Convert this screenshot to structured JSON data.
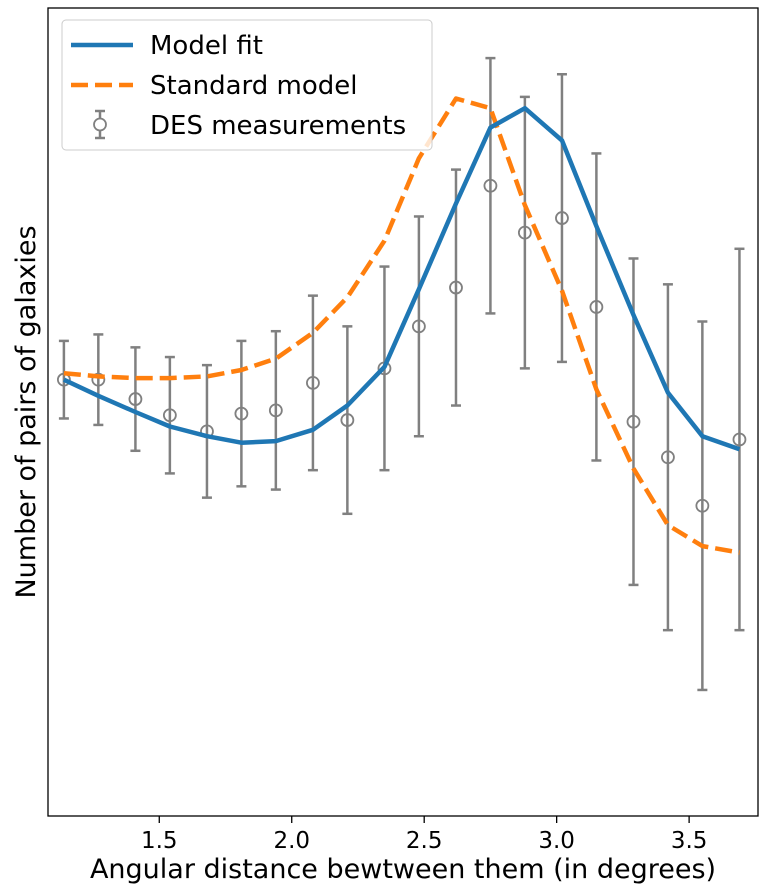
{
  "chart_data": {
    "type": "line",
    "title": "",
    "xlabel": "Angular distance bewtween them (in degrees)",
    "ylabel": "Number of pairs of galaxies",
    "xlim": [
      1.08,
      3.76
    ],
    "ylim": [
      -2.7,
      2.3
    ],
    "xticks": [
      1.5,
      2.0,
      2.5,
      3.0,
      3.5
    ],
    "xtick_labels": [
      "1.5",
      "2.0",
      "2.5",
      "3.0",
      "3.5"
    ],
    "yticks_visible": false,
    "grid": false,
    "legend_position": "top-left",
    "legend": [
      "Model fit",
      "Standard model",
      "DES measurements"
    ],
    "x": [
      1.14,
      1.27,
      1.41,
      1.54,
      1.68,
      1.81,
      1.94,
      2.08,
      2.21,
      2.35,
      2.48,
      2.62,
      2.75,
      2.88,
      3.02,
      3.15,
      3.29,
      3.42,
      3.55,
      3.69
    ],
    "series": [
      {
        "name": "Model fit",
        "style": "solid",
        "color": "#1f77b4",
        "values": [
          0.0,
          -0.1,
          -0.2,
          -0.29,
          -0.35,
          -0.39,
          -0.38,
          -0.31,
          -0.16,
          0.08,
          0.56,
          1.09,
          1.56,
          1.68,
          1.48,
          0.95,
          0.4,
          -0.08,
          -0.35,
          -0.43
        ]
      },
      {
        "name": "Standard model",
        "style": "dashed",
        "color": "#ff7f0e",
        "values": [
          0.04,
          0.02,
          0.01,
          0.01,
          0.02,
          0.06,
          0.13,
          0.29,
          0.51,
          0.86,
          1.37,
          1.74,
          1.68,
          1.08,
          0.55,
          -0.06,
          -0.55,
          -0.9,
          -1.03,
          -1.07
        ]
      },
      {
        "name": "DES measurements",
        "style": "errorbar",
        "color": "#808080",
        "values": [
          0.0,
          -0.0,
          -0.12,
          -0.22,
          -0.32,
          -0.21,
          -0.19,
          -0.02,
          -0.25,
          0.07,
          0.33,
          0.57,
          1.2,
          0.91,
          1.0,
          0.45,
          -0.26,
          -0.48,
          -0.78,
          -0.37
        ],
        "errors": [
          0.24,
          0.28,
          0.32,
          0.36,
          0.41,
          0.45,
          0.49,
          0.54,
          0.58,
          0.63,
          0.68,
          0.73,
          0.79,
          0.84,
          0.89,
          0.95,
          1.01,
          1.07,
          1.14,
          1.18
        ]
      }
    ]
  }
}
